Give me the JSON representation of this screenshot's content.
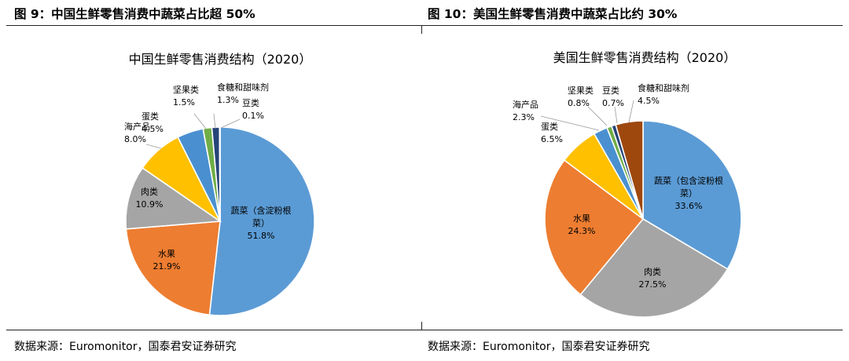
{
  "figures": [
    {
      "heading": "图 9：中国生鲜零售消费中蔬菜占比超 50%",
      "source": "数据来源：Euromonitor，国泰君安证券研究"
    },
    {
      "heading": "图 10：美国生鲜零售消费中蔬菜占比约 30%",
      "source": "数据来源：Euromonitor，国泰君安证券研究"
    }
  ],
  "chart_data": [
    {
      "type": "pie",
      "title": "中国生鲜零售消费结构（2020）",
      "slices": [
        {
          "label": [
            "蔬菜（含淀粉根",
            "菜）"
          ],
          "value": 51.8,
          "value_label": "51.8%",
          "color": "#5b9bd5"
        },
        {
          "label": [
            "水果"
          ],
          "value": 21.9,
          "value_label": "21.9%",
          "color": "#ed7d31"
        },
        {
          "label": [
            "肉类"
          ],
          "value": 10.9,
          "value_label": "10.9%",
          "color": "#a5a5a5"
        },
        {
          "label": [
            "海产品"
          ],
          "value": 8.0,
          "value_label": "8.0%",
          "color": "#ffc000"
        },
        {
          "label": [
            "蛋类"
          ],
          "value": 4.5,
          "value_label": "4.5%",
          "color": "#4a90d0"
        },
        {
          "label": [
            "坚果类"
          ],
          "value": 1.5,
          "value_label": "1.5%",
          "color": "#70ad47"
        },
        {
          "label": [
            "食糖和甜味剂"
          ],
          "value": 1.3,
          "value_label": "1.3%",
          "color": "#264478"
        },
        {
          "label": [
            "豆类"
          ],
          "value": 0.1,
          "value_label": "0.1%",
          "color": "#9e480e"
        }
      ]
    },
    {
      "type": "pie",
      "title": "美国生鲜零售消费结构（2020）",
      "slices": [
        {
          "label": [
            "蔬菜（包含淀粉根",
            "菜）"
          ],
          "value": 33.6,
          "value_label": "33.6%",
          "color": "#5b9bd5"
        },
        {
          "label": [
            "肉类"
          ],
          "value": 27.5,
          "value_label": "27.5%",
          "color": "#a5a5a5"
        },
        {
          "label": [
            "水果"
          ],
          "value": 24.3,
          "value_label": "24.3%",
          "color": "#ed7d31"
        },
        {
          "label": [
            "蛋类"
          ],
          "value": 6.5,
          "value_label": "6.5%",
          "color": "#ffc000"
        },
        {
          "label": [
            "海产品"
          ],
          "value": 2.3,
          "value_label": "2.3%",
          "color": "#4a90d0"
        },
        {
          "label": [
            "坚果类"
          ],
          "value": 0.8,
          "value_label": "0.8%",
          "color": "#70ad47"
        },
        {
          "label": [
            "豆类"
          ],
          "value": 0.7,
          "value_label": "0.7%",
          "color": "#264478"
        },
        {
          "label": [
            "食糖和甜味剂"
          ],
          "value": 4.5,
          "value_label": "4.5%",
          "color": "#9e480e"
        }
      ]
    }
  ]
}
